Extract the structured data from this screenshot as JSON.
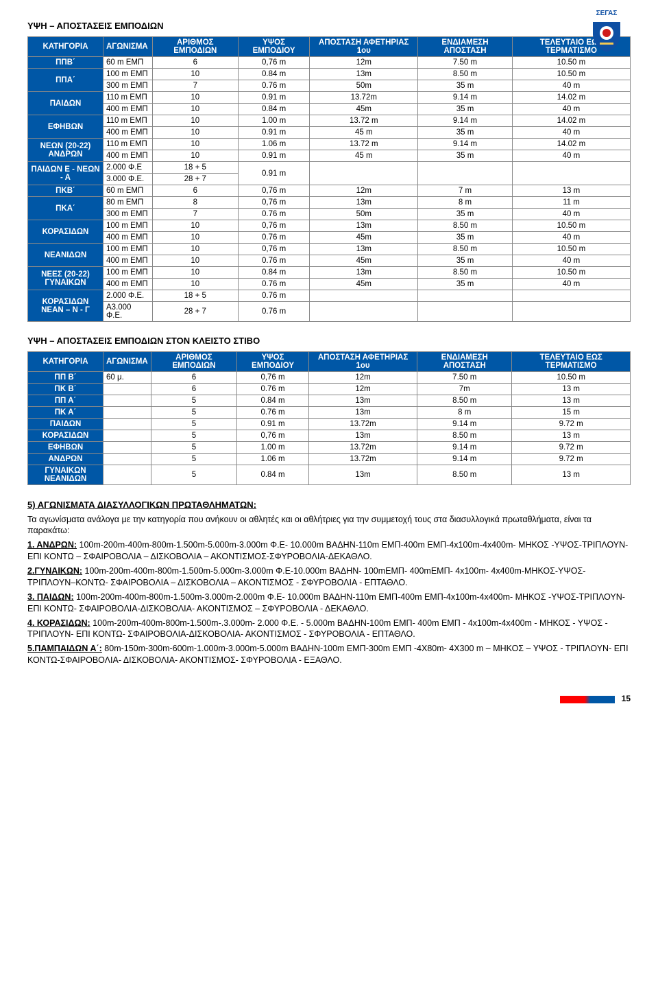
{
  "colors": {
    "header_blue": "#0057a6",
    "header_text": "#ffffff",
    "page_bar_left": "#ff0000",
    "page_bar_right": "#0057a6",
    "text": "#000000",
    "background": "#ffffff",
    "logo_blue": "#0e4fa3",
    "logo_red": "#d01b1b",
    "logo_gold": "#f5c851"
  },
  "logo_text": "ΣΕΓΑΣ",
  "title1": "ΥΨΗ – ΑΠΟΣΤΑΣΕΙΣ ΕΜΠΟΔΙΩΝ",
  "table1": {
    "headers": [
      "ΚΑΤΗΓΟΡΙΑ",
      "ΑΓΩΝΙΣΜΑ",
      "ΑΡΙΘΜΟΣ ΕΜΠΟΔΙΩΝ",
      "ΥΨΟΣ ΕΜΠΟΔΙΟΥ",
      "ΑΠΟΣΤΑΣΗ ΑΦΕΤΗΡΙΑΣ 1ου",
      "ΕΝΔΙΑΜΕΣΗ ΑΠΟΣΤΑΣΗ",
      "ΤΕΛΕΥΤΑΙΟ ΕΩΣ ΤΕΡΜΑΤΙΣΜΟ"
    ],
    "rows": [
      {
        "cat": "ΠΠΒ΄",
        "span": 1,
        "cells": [
          [
            "60 m ΕΜΠ",
            "6",
            "0,76 m",
            "12m",
            "7.50 m",
            "10.50 m"
          ]
        ]
      },
      {
        "cat": "ΠΠΑ΄",
        "span": 2,
        "cells": [
          [
            "100 m ΕΜΠ",
            "10",
            "0.84 m",
            "13m",
            "8.50 m",
            "10.50 m"
          ],
          [
            "300 m ΕΜΠ",
            "7",
            "0.76 m",
            "50m",
            "35 m",
            "40 m"
          ]
        ]
      },
      {
        "cat": "ΠΑΙΔΩΝ",
        "span": 2,
        "cells": [
          [
            "110 m ΕΜΠ",
            "10",
            "0.91 m",
            "13.72m",
            "9.14 m",
            "14.02 m"
          ],
          [
            "400 m ΕΜΠ",
            "10",
            "0.84 m",
            "45m",
            "35 m",
            "40 m"
          ]
        ]
      },
      {
        "cat": "ΕΦΗΒΩΝ",
        "span": 2,
        "cells": [
          [
            "110 m ΕΜΠ",
            "10",
            "1.00 m",
            "13.72 m",
            "9.14 m",
            "14.02 m"
          ],
          [
            "400 m ΕΜΠ",
            "10",
            "0.91 m",
            "45 m",
            "35 m",
            "40 m"
          ]
        ]
      },
      {
        "cat": "ΝΕΩΝ (20-22) ΑΝΔΡΩΝ",
        "span": 2,
        "cells": [
          [
            "110 m ΕΜΠ",
            "10",
            "1.06 m",
            "13.72 m",
            "9.14 m",
            "14.02 m"
          ],
          [
            "400 m ΕΜΠ",
            "10",
            "0.91 m",
            "45 m",
            "35 m",
            "40 m"
          ]
        ]
      },
      {
        "cat": "ΠΑΙΔΩΝ Ε - ΝΕΩΝ - Α",
        "span": 2,
        "merge_last": true,
        "cells": [
          [
            "2.000 Φ.Ε",
            "18 + 5",
            "0.91 m",
            "",
            "",
            ""
          ],
          [
            "3.000 Φ.Ε.",
            "28 + 7",
            "",
            "",
            "",
            ""
          ]
        ]
      },
      {
        "cat": "ΠΚΒ΄",
        "span": 1,
        "cells": [
          [
            "60 m ΕΜΠ",
            "6",
            "0,76 m",
            "12m",
            "7 m",
            "13 m"
          ]
        ]
      },
      {
        "cat": "ΠΚΑ΄",
        "span": 2,
        "cells": [
          [
            "80 m ΕΜΠ",
            "8",
            "0,76 m",
            "13m",
            "8 m",
            "11 m"
          ],
          [
            "300 m ΕΜΠ",
            "7",
            "0.76 m",
            "50m",
            "35 m",
            "40 m"
          ]
        ]
      },
      {
        "cat": "ΚΟΡΑΣΙΔΩΝ",
        "span": 2,
        "cells": [
          [
            "100 m ΕΜΠ",
            "10",
            "0,76 m",
            "13m",
            "8.50 m",
            "10.50 m"
          ],
          [
            "400 m ΕΜΠ",
            "10",
            "0.76 m",
            "45m",
            "35 m",
            "40 m"
          ]
        ]
      },
      {
        "cat": "ΝΕΑΝΙΔΩΝ",
        "span": 2,
        "cells": [
          [
            "100 m ΕΜΠ",
            "10",
            "0,76 m",
            "13m",
            "8.50 m",
            "10.50 m"
          ],
          [
            "400 m ΕΜΠ",
            "10",
            "0.76 m",
            "45m",
            "35 m",
            "40 m"
          ]
        ]
      },
      {
        "cat": "ΝΕΕΣ (20-22) ΓΥΝΑΙΚΩΝ",
        "span": 2,
        "cells": [
          [
            "100 m ΕΜΠ",
            "10",
            "0.84 m",
            "13m",
            "8.50 m",
            "10.50 m"
          ],
          [
            "400 m ΕΜΠ",
            "10",
            "0.76 m",
            "45m",
            "35 m",
            "40 m"
          ]
        ]
      },
      {
        "cat": "ΚΟΡΑΣΙΔΩΝ ΝΕΑΝ – Ν - Γ",
        "span": 2,
        "cells": [
          [
            "2.000 Φ.Ε.",
            "18 + 5",
            "0.76 m",
            "",
            "",
            ""
          ],
          [
            "Α3.000 Φ.Ε.",
            "28 + 7",
            "0.76 m",
            "",
            "",
            ""
          ]
        ]
      }
    ]
  },
  "title2": "ΥΨΗ – ΑΠΟΣΤΑΣΕΙΣ  ΕΜΠΟΔΙΩΝ   ΣΤΟΝ ΚΛΕΙΣΤΟ ΣΤΙΒΟ",
  "table2": {
    "headers": [
      "ΚΑΤΗΓΟΡΙΑ",
      "ΑΓΩΝΙΣΜΑ",
      "ΑΡΙΘΜΟΣ ΕΜΠΟΔΙΩΝ",
      "ΥΨΟΣ ΕΜΠΟΔΙΟΥ",
      "ΑΠΟΣΤΑΣΗ ΑΦΕΤΗΡΙΑΣ 1ου",
      "ΕΝΔΙΑΜΕΣΗ ΑΠΟΣΤΑΣΗ",
      "ΤΕΛΕΥΤΑΙΟ ΕΩΣ ΤΕΡΜΑΤΙΣΜΟ"
    ],
    "rows": [
      [
        "ΠΠ Β΄",
        "60 μ.",
        "6",
        "0,76 m",
        "12m",
        "7.50 m",
        "10.50 m"
      ],
      [
        "ΠΚ Β΄",
        "",
        "6",
        "0.76 m",
        "12m",
        "7m",
        "13 m"
      ],
      [
        "ΠΠ Α΄",
        "",
        "5",
        "0.84 m",
        "13m",
        "8.50 m",
        "13 m"
      ],
      [
        "ΠΚ Α΄",
        "",
        "5",
        "0.76 m",
        "13m",
        "8 m",
        "15 m"
      ],
      [
        "ΠΑΙΔΩΝ",
        "",
        "5",
        "0.91 m",
        "13.72m",
        "9.14 m",
        "9.72 m"
      ],
      [
        "ΚΟΡΑΣΙΔΩΝ",
        "",
        "5",
        "0,76 m",
        "13m",
        "8.50 m",
        "13 m"
      ],
      [
        "ΕΦΗΒΩΝ",
        "",
        "5",
        "1.00 m",
        "13.72m",
        "9.14 m",
        "9.72 m"
      ],
      [
        "ΑΝΔΡΩΝ",
        "",
        "5",
        "1.06 m",
        "13.72m",
        "9.14 m",
        "9.72 m"
      ],
      [
        "ΓΥΝΑΙΚΩΝ ΝΕΑΝΙΔΩΝ",
        "",
        "5",
        "0.84 m",
        "13m",
        "8.50 m",
        "13 m"
      ]
    ]
  },
  "section5": {
    "heading": "5) ΑΓΩΝΙΣΜΑΤΑ ΔΙΑΣΥΛΛΟΓΙΚΩΝ  ΠΡΩΤΑΘΛΗΜΑΤΩΝ:",
    "intro": "Τα αγωνίσματα ανάλογα με την κατηγορία που ανήκουν οι αθλητές και οι αθλήτριες για την συμμετοχή τους στα διασυλλογικά πρωταθλήματα,  είναι τα παρακάτω:",
    "items": [
      {
        "label": "1. ΑΝΔΡΩΝ:",
        "text": " 100m-200m-400m-800m-1.500m-5.000m-3.000m Φ.Ε- 10.000m ΒΑΔΗΝ-110m ΕΜΠ-400m ΕΜΠ-4x100m-4x400m- ΜΗΚΟΣ -ΥΨΟΣ-ΤΡΙΠΛΟΥΝ- ΕΠΙ ΚΟΝΤΩ – ΣΦΑΙΡΟΒΟΛΙΑ – ΔΙΣΚΟΒΟΛΙΑ – ΑΚΟΝΤΙΣΜΟΣ-ΣΦΥΡΟΒΟΛΙΑ-ΔΕΚΑΘΛΟ."
      },
      {
        "label": "2.ΓΥΝΑΙΚΩΝ:",
        "text": " 100m-200m-400m-800m-1.500m-5.000m-3.000m Φ.Ε-10.000m ΒΑΔΗΝ-\n100mΕΜΠ- 400mΕΜΠ- 4x100m- 4x400m-ΜΗΚΟΣ-ΥΨΟΣ-ΤΡΙΠΛΟΥΝ–ΚΟΝΤΩ- ΣΦΑΙΡΟΒΟΛΙΑ – ΔΙΣΚΟΒΟΛΙΑ – ΑΚΟΝΤΙΣΜΟΣ - ΣΦΥΡΟΒΟΛΙΑ - ΕΠΤΑΘΛΟ."
      },
      {
        "label": "3. ΠΑΙΔΩΝ:",
        "text": " 100m-200m-400m-800m-1.500m-3.000m-2.000m Φ.Ε- 10.000m ΒΑΔΗΝ-110m ΕΜΠ-400m ΕΜΠ-4x100m-4x400m- ΜΗΚΟΣ -ΥΨΟΣ-ΤΡΙΠΛΟΥΝ- ΕΠΙ ΚΟΝΤΩ- ΣΦΑΙΡΟΒΟΛΙΑ-ΔΙΣΚΟΒΟΛΙΑ- ΑΚΟΝΤΙΣΜΟΣ – ΣΦΥΡΟΒΟΛΙΑ - ΔΕΚΑΘΛΟ."
      },
      {
        "label": "4. ΚΟΡΑΣΙΔΩΝ:",
        "text": " 100m-200m-400m-800m-1.500m-.3.000m- 2.000 Φ.Ε. - 5.000m ΒΑΔΗΝ-100m ΕΜΠ- 400m ΕΜΠ - 4x100m-4x400m - ΜΗΚΟΣ - ΥΨΟΣ - ΤΡΙΠΛΟΥΝ- ΕΠΙ ΚΟΝΤΩ- ΣΦΑΙΡΟΒΟΛΙΑ-ΔΙΣΚΟΒΟΛΙΑ- ΑΚΟΝΤΙΣΜΟΣ - ΣΦΥΡΟΒΟΛΙΑ - ΕΠΤΑΘΛΟ."
      },
      {
        "label": "5.ΠΑΜΠΑΙΔΩΝ Α΄:",
        "text": " 80m-150m-300m-600m-1.000m-3.000m-5.000m ΒΑΔΗΝ-100m ΕΜΠ-300m ΕΜΠ -4Χ80m- 4Χ300 m – ΜΗΚΟΣ – ΥΨΟΣ - ΤΡΙΠΛΟΥΝ- ΕΠΙ ΚΟΝΤΩ-ΣΦΑΙΡΟΒΟΛΙΑ- ΔΙΣΚΟΒΟΛΙΑ- ΑΚΟΝΤΙΣΜΟΣ- ΣΦΥΡΟΒΟΛΙΑ - ΕΞΑΘΛΟ."
      }
    ]
  },
  "page_number": "15"
}
